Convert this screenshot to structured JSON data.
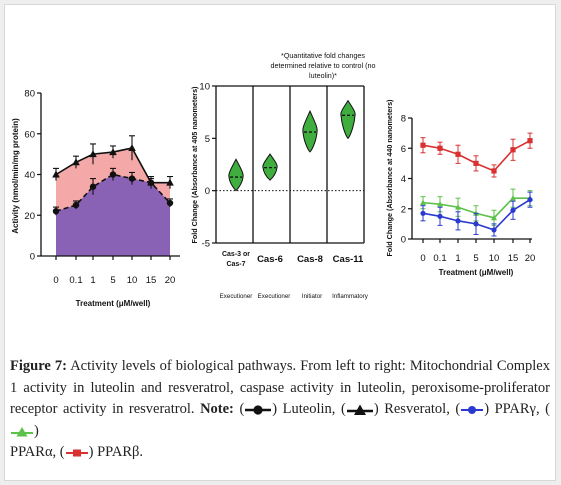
{
  "colors": {
    "luteolin": "#111111",
    "resveratrol": "#111111",
    "area_red": "#f4a8a8",
    "area_purple": "#8a62b5",
    "violin_green": "#3fae3f",
    "ppar_gamma": "#2a3ad0",
    "ppar_alpha": "#5cc24a",
    "ppar_beta": "#d93030",
    "frame_bg": "#eeeeee"
  },
  "chart_data": [
    {
      "type": "line",
      "ylabel": "Activity (nmol/min/mg protein)",
      "xlabel": "Treatment (μM/well)",
      "categories": [
        "0",
        "0.1",
        "1",
        "5",
        "10",
        "15",
        "20"
      ],
      "yticks": [
        "0",
        "20",
        "40",
        "60",
        "80"
      ],
      "ylim": [
        0,
        80
      ],
      "series": [
        {
          "key": "luteolin",
          "values": [
            22,
            25,
            34,
            40,
            38,
            36,
            26
          ],
          "errors": [
            2,
            2,
            4,
            3,
            3,
            2,
            2
          ]
        },
        {
          "key": "resveratrol",
          "values": [
            40,
            46,
            50,
            51,
            53,
            36,
            36
          ],
          "errors": [
            3,
            3,
            5,
            3,
            6,
            3,
            3
          ]
        }
      ]
    },
    {
      "type": "violin",
      "annotation": "*Quantitative fold changes determined relative to control (no luteolin)*",
      "ylabel": "Fold Change (Absorbance at 405 nanometers)",
      "yticks": [
        "-5",
        "0",
        "5",
        "10"
      ],
      "ylim": [
        -5,
        10
      ],
      "categories": [
        "Cas-3 or Cas-7",
        "Cas-6",
        "Cas-8",
        "Cas-11"
      ],
      "category_roles": [
        "Executioner",
        "Executioner",
        "Initiator",
        "Inflammatory"
      ],
      "median": [
        1.3,
        2.2,
        5.6,
        7.2
      ],
      "range": [
        [
          0.0,
          3.0
        ],
        [
          1.0,
          3.5
        ],
        [
          3.7,
          7.6
        ],
        [
          5.0,
          8.6
        ]
      ]
    },
    {
      "type": "line",
      "ylabel": "Fold Change (Absorbance at 440 nanometers)",
      "xlabel": "Treatment (μM/well)",
      "categories": [
        "0",
        "0.1",
        "1",
        "5",
        "10",
        "15",
        "20"
      ],
      "yticks": [
        "0",
        "2",
        "4",
        "6",
        "8"
      ],
      "ylim": [
        0,
        8
      ],
      "series": [
        {
          "key": "ppar_beta",
          "values": [
            6.2,
            6.0,
            5.6,
            5.0,
            4.5,
            5.9,
            6.5
          ],
          "errors": [
            0.5,
            0.4,
            0.6,
            0.5,
            0.4,
            0.7,
            0.5
          ]
        },
        {
          "key": "ppar_alpha",
          "values": [
            2.4,
            2.3,
            2.1,
            1.7,
            1.4,
            2.7,
            2.7
          ],
          "errors": [
            0.4,
            0.5,
            0.6,
            0.5,
            0.5,
            0.6,
            0.5
          ]
        },
        {
          "key": "ppar_gamma",
          "values": [
            1.7,
            1.5,
            1.2,
            1.0,
            0.6,
            1.9,
            2.6
          ],
          "errors": [
            0.5,
            0.6,
            0.6,
            0.7,
            0.4,
            0.6,
            0.5
          ]
        }
      ]
    }
  ],
  "caption": {
    "label": "Figure 7:",
    "text": "Activity levels of biological pathways. From left to right: Mitochondrial Complex 1 activity in luteolin and resveratrol, caspase activity in luteolin, peroxisome-proliferator receptor activity in resveratrol.",
    "note_label": "Note:",
    "legend": [
      {
        "key": "luteolin",
        "label": "Luteolin,"
      },
      {
        "key": "resveratrol",
        "label": "Resveratol,"
      },
      {
        "key": "ppar_gamma",
        "label": "PPARγ,"
      },
      {
        "key": "ppar_alpha",
        "label": "PPARα,"
      },
      {
        "key": "ppar_beta",
        "label": "PPARβ."
      }
    ]
  }
}
